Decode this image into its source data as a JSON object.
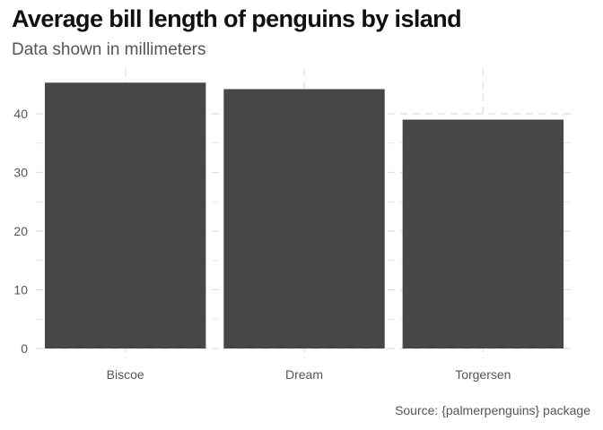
{
  "chart_data": {
    "type": "bar",
    "title": "Average bill length of penguins by island",
    "subtitle": "Data shown in millimeters",
    "caption": "Source: {palmerpenguins} package",
    "categories": [
      "Biscoe",
      "Dream",
      "Torgersen"
    ],
    "values": [
      45.3,
      44.2,
      39.0
    ],
    "xlabel": "",
    "ylabel": "",
    "ylim": [
      0,
      47.5
    ],
    "yticks": [
      0,
      10,
      20,
      30,
      40
    ],
    "grid": true,
    "legend": "none",
    "colors": {
      "bar": "#474747",
      "grid": "#dedede",
      "text": "#555555",
      "title": "#111111"
    }
  }
}
